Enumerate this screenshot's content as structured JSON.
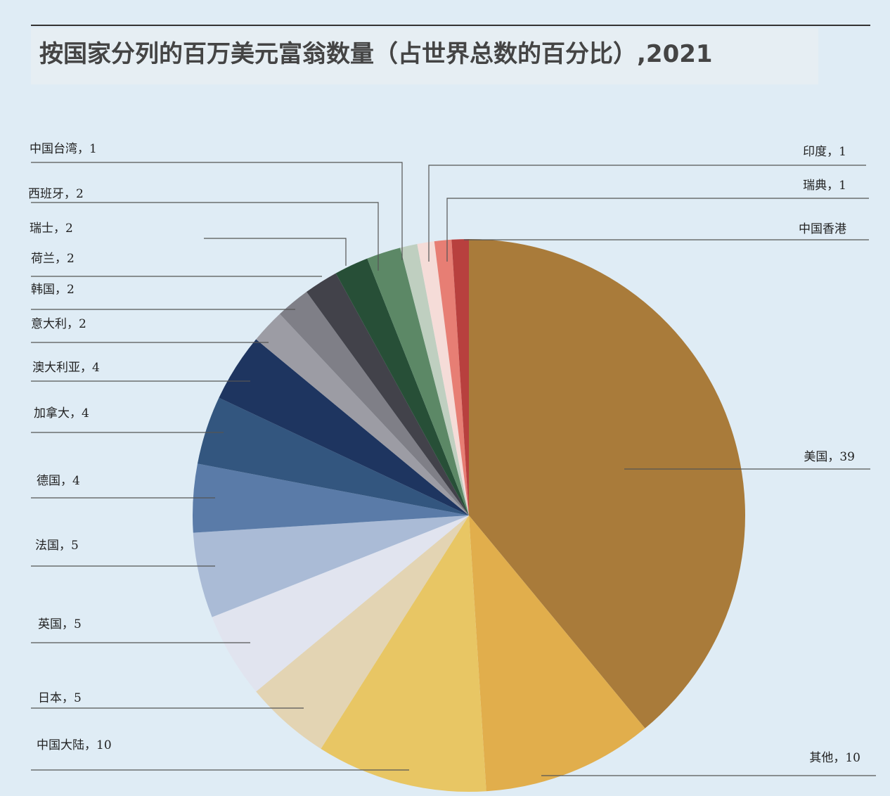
{
  "chart_data": {
    "type": "pie",
    "title": "按国家分列的百万美元富翁数量（占世界总数的百分比）,2021",
    "slices": [
      {
        "label": "美国，39",
        "value": 39,
        "color": "#a97b3a"
      },
      {
        "label": "其他，10",
        "value": 10,
        "color": "#e1ae4c"
      },
      {
        "label": "中国大陆，10",
        "value": 10,
        "color": "#e8c664"
      },
      {
        "label": "日本，5",
        "value": 5,
        "color": "#e3d4b3"
      },
      {
        "label": "英国，5",
        "value": 5,
        "color": "#e1e4ef"
      },
      {
        "label": "法国，5",
        "value": 5,
        "color": "#aabbd6"
      },
      {
        "label": "德国，4",
        "value": 4,
        "color": "#5a7ba8"
      },
      {
        "label": "加拿大，4",
        "value": 4,
        "color": "#33567f"
      },
      {
        "label": "澳大利亚，4",
        "value": 4,
        "color": "#1e3560"
      },
      {
        "label": "意大利，2",
        "value": 2,
        "color": "#9c9ca4"
      },
      {
        "label": "韩国，2",
        "value": 2,
        "color": "#7f7f87"
      },
      {
        "label": "荷兰，2",
        "value": 2,
        "color": "#42424a"
      },
      {
        "label": "瑞士，2",
        "value": 2,
        "color": "#274f37"
      },
      {
        "label": "西班牙，2",
        "value": 2,
        "color": "#5c8866"
      },
      {
        "label": "中国台湾，1",
        "value": 1,
        "color": "#bfcfc0"
      },
      {
        "label": "印度，1",
        "value": 1,
        "color": "#f5dcd8"
      },
      {
        "label": "瑞典，1",
        "value": 1,
        "color": "#e77e74"
      },
      {
        "label": "中国香港",
        "value": 1,
        "color": "#b8403e"
      }
    ]
  }
}
